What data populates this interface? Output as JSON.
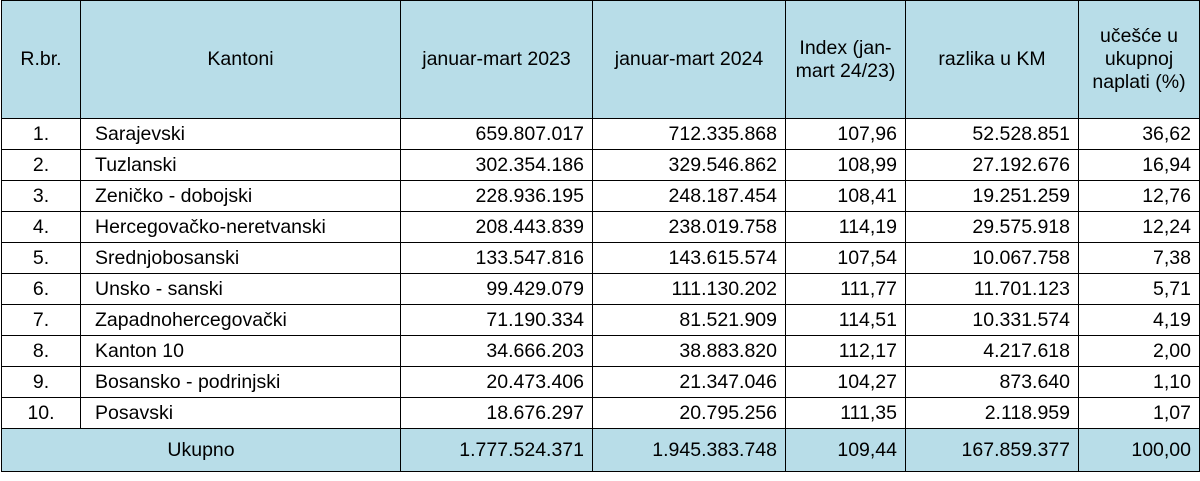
{
  "table": {
    "header": [
      "R.br.",
      "Kantoni",
      "januar-mart 2023",
      "januar-mart 2024",
      "Index (jan-mart 24/23)",
      "razlika u KM",
      "učešće u ukupnoj naplati (%)"
    ],
    "rows": [
      [
        "1.",
        "Sarajevski",
        "659.807.017",
        "712.335.868",
        "107,96",
        "52.528.851",
        "36,62"
      ],
      [
        "2.",
        "Tuzlanski",
        "302.354.186",
        "329.546.862",
        "108,99",
        "27.192.676",
        "16,94"
      ],
      [
        "3.",
        "Zeničko - dobojski",
        "228.936.195",
        "248.187.454",
        "108,41",
        "19.251.259",
        "12,76"
      ],
      [
        "4.",
        "Hercegovačko-neretvanski",
        "208.443.839",
        "238.019.758",
        "114,19",
        "29.575.918",
        "12,24"
      ],
      [
        "5.",
        "Srednjobosanski",
        "133.547.816",
        "143.615.574",
        "107,54",
        "10.067.758",
        "7,38"
      ],
      [
        "6.",
        "Unsko - sanski",
        "99.429.079",
        "111.130.202",
        "111,77",
        "11.701.123",
        "5,71"
      ],
      [
        "7.",
        "Zapadnohercegovački",
        "71.190.334",
        "81.521.909",
        "114,51",
        "10.331.574",
        "4,19"
      ],
      [
        "8.",
        "Kanton 10",
        "34.666.203",
        "38.883.820",
        "112,17",
        "4.217.618",
        "2,00"
      ],
      [
        "9.",
        "Bosansko - podrinjski",
        "20.473.406",
        "21.347.046",
        "104,27",
        "873.640",
        "1,10"
      ],
      [
        "10.",
        "Posavski",
        "18.676.297",
        "20.795.256",
        "111,35",
        "2.118.959",
        "1,07"
      ]
    ],
    "footer": [
      "Ukupno",
      "1.777.524.371",
      "1.945.383.748",
      "109,44",
      "167.859.377",
      "100,00"
    ]
  }
}
